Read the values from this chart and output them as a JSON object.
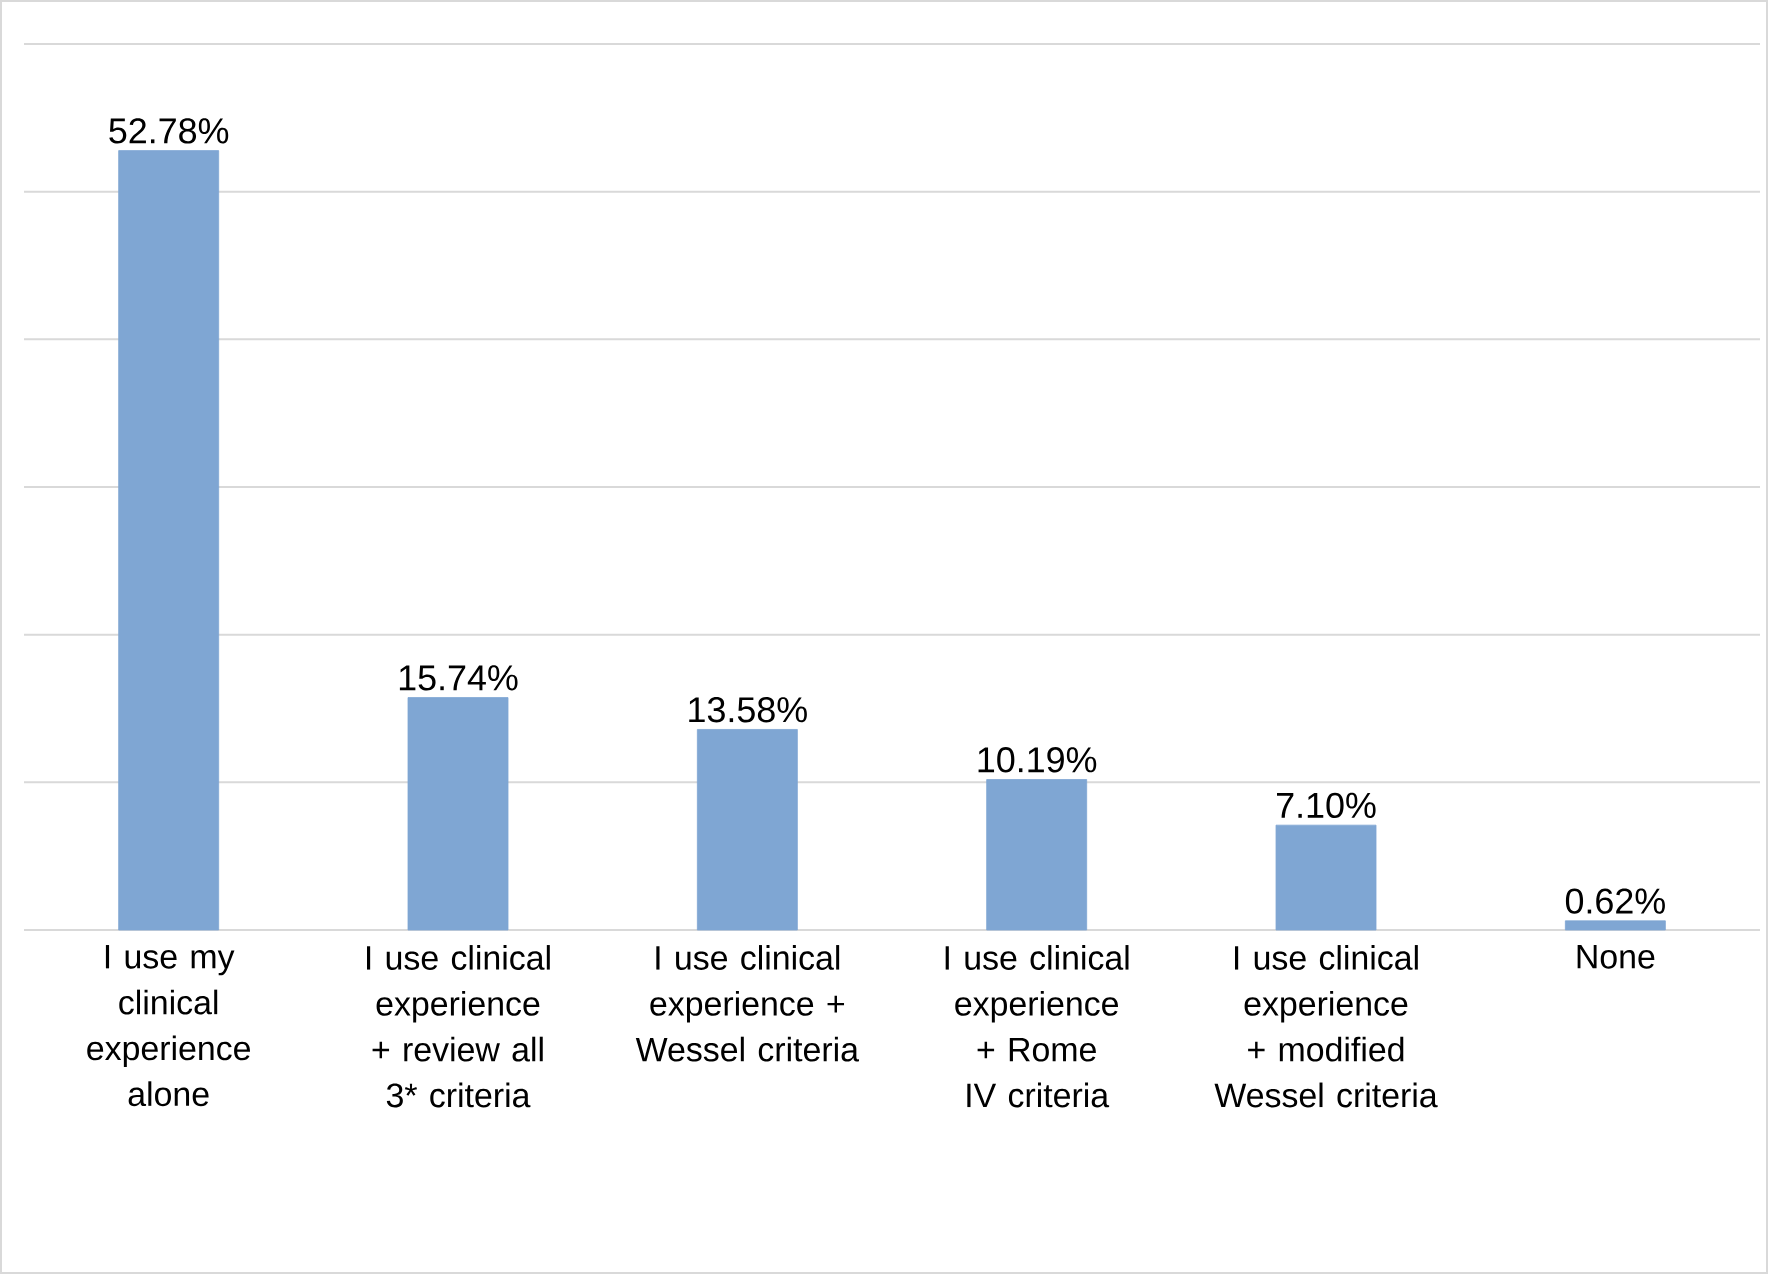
{
  "chart_data": {
    "type": "bar",
    "categories": [
      "I use my clinical experience alone",
      "I use clinical experience + review all 3* criteria",
      "I use clinical experience + Wessel criteria",
      "I use clinical experience + Rome IV criteria",
      "I use clinical experience + modified Wessel criteria",
      "None"
    ],
    "values": [
      52.78,
      15.74,
      13.58,
      10.19,
      7.1,
      0.62
    ],
    "value_labels": [
      "52.78%",
      "15.74%",
      "13.58%",
      "10.19%",
      "7.10%",
      "0.62%"
    ],
    "color": "#7fa6d3",
    "ylim": [
      0,
      60
    ],
    "yticks": [
      {
        "value": 0,
        "label": null
      },
      {
        "value": 10,
        "label": null
      },
      {
        "value": 20,
        "label": null
      },
      {
        "value": 30,
        "label": null
      },
      {
        "value": 40,
        "label": null
      },
      {
        "value": 50,
        "label": null
      },
      {
        "value": 60,
        "label": null
      }
    ],
    "grid": "y",
    "tick_labels": "x"
  }
}
